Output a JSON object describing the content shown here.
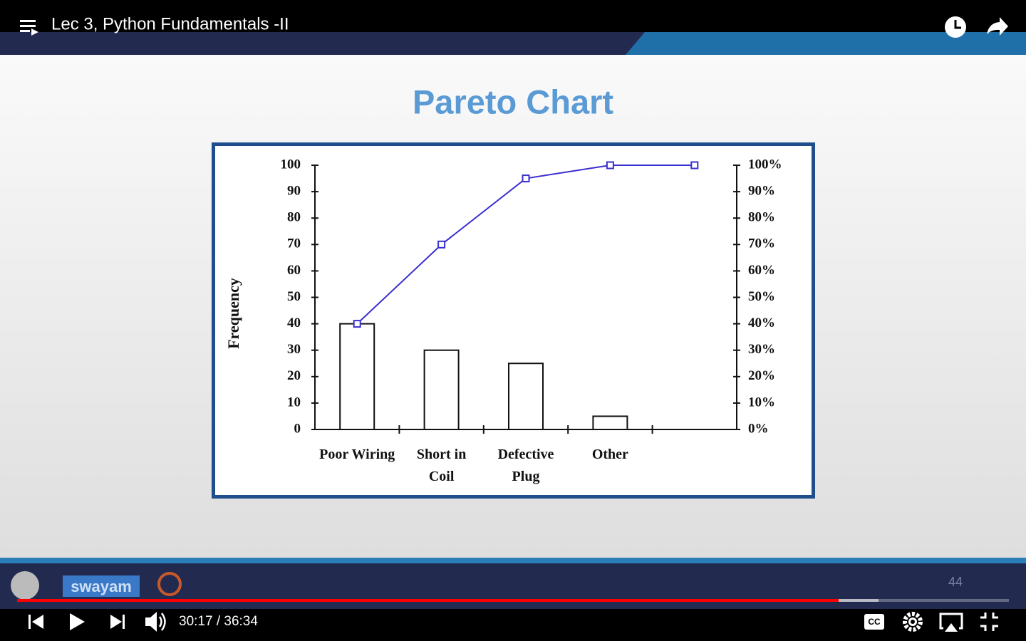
{
  "player": {
    "title": "Lec 3, Python Fundamentals -II",
    "time": "30:17 / 36:34",
    "slide_number": "44",
    "logo": "swayam"
  },
  "chart_data": {
    "type": "bar",
    "title": "Pareto Chart",
    "ylabel": "Frequency",
    "categories": [
      "Poor Wiring",
      "Short in Coil",
      "Defective Plug",
      "Other",
      null
    ],
    "series": [
      {
        "type": "bar",
        "color": "#ffffff",
        "values": [
          40,
          30,
          25,
          5,
          null
        ]
      },
      {
        "type": "line",
        "color": "#3a2fd0",
        "axis": "y2",
        "values": [
          40,
          70,
          95,
          100,
          100
        ]
      }
    ],
    "ylim": [
      0,
      100
    ],
    "yticks": [
      0,
      10,
      20,
      30,
      40,
      50,
      60,
      70,
      80,
      90,
      100
    ],
    "y2lim": [
      0,
      100
    ],
    "y2ticks": [
      {
        "value": 0,
        "label": "0%"
      },
      {
        "value": 10,
        "label": "10%"
      },
      {
        "value": 20,
        "label": "20%"
      },
      {
        "value": 30,
        "label": "30%"
      },
      {
        "value": 40,
        "label": "40%"
      },
      {
        "value": 50,
        "label": "50%"
      },
      {
        "value": 60,
        "label": "60%"
      },
      {
        "value": 70,
        "label": "70%"
      },
      {
        "value": 80,
        "label": "80%"
      },
      {
        "value": 90,
        "label": "90%"
      },
      {
        "value": 100,
        "label": "100%"
      }
    ]
  }
}
